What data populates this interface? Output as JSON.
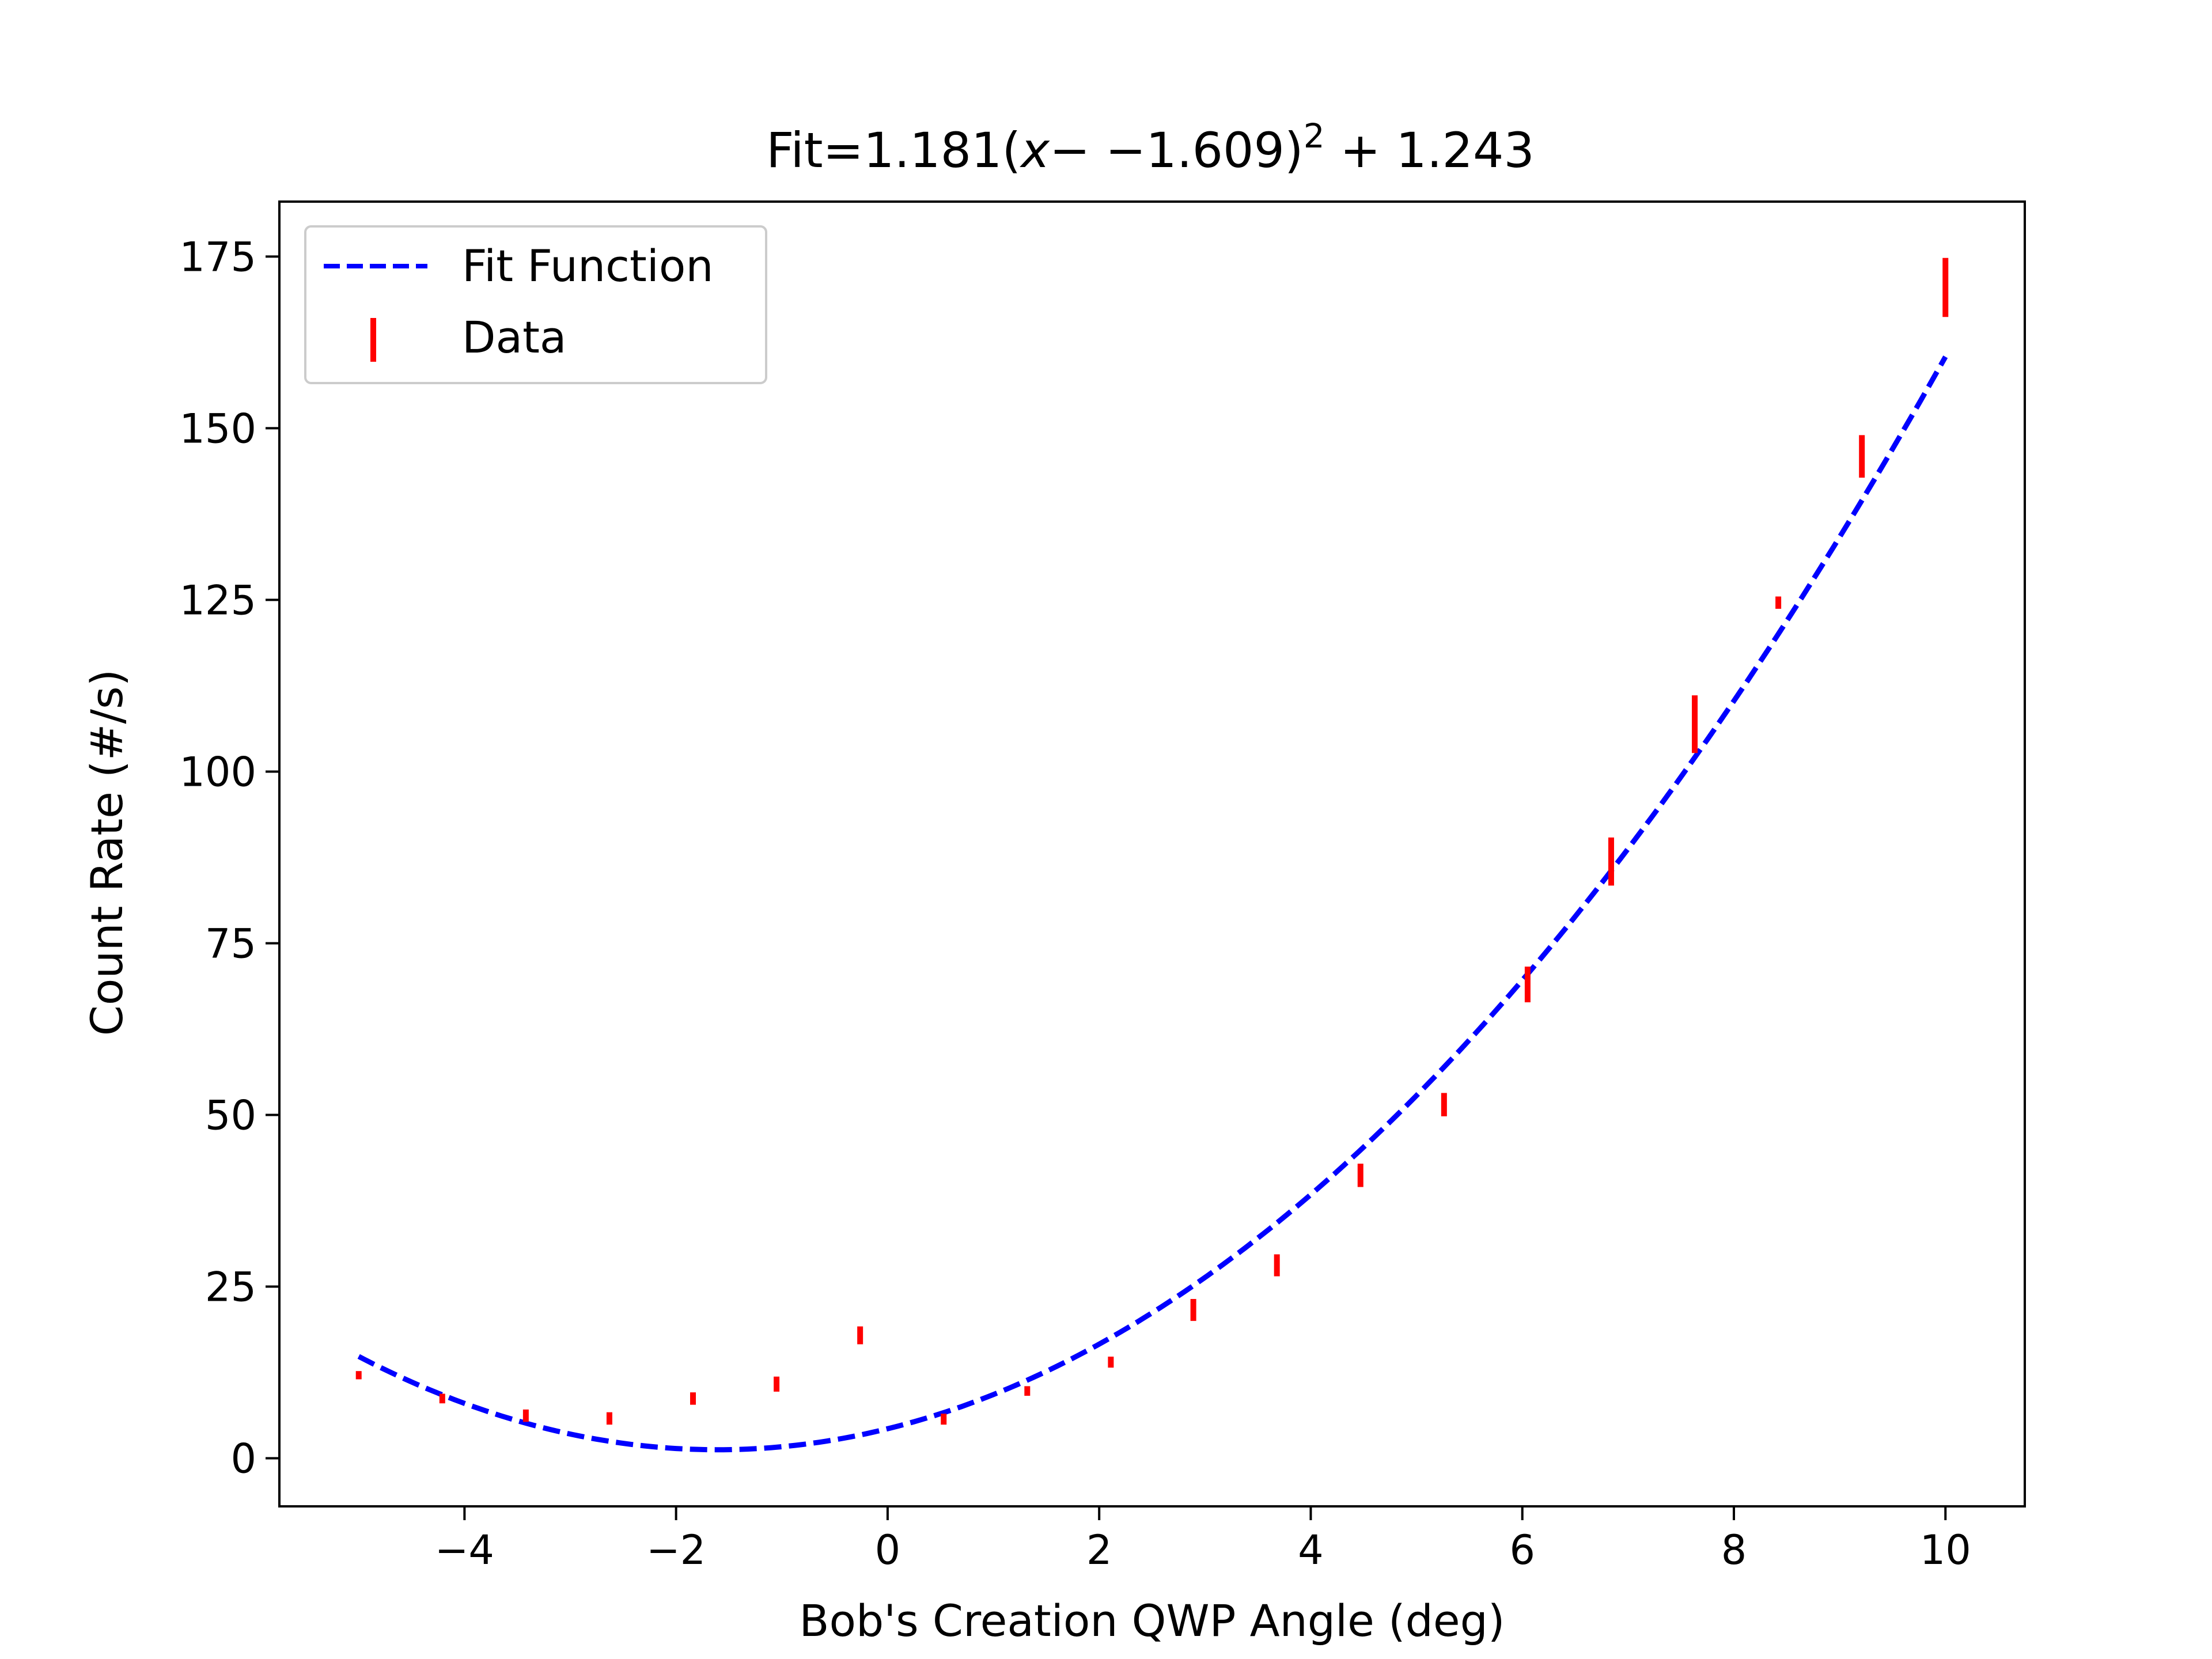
{
  "chart_data": {
    "type": "scatter",
    "title": "Fit=1.181(x− −1.609)² + 1.243",
    "title_parts": {
      "prefix": "Fit=1.181(",
      "var": "x",
      "middle": "− −1.609)",
      "sup": "2",
      "suffix": " + 1.243"
    },
    "xlabel": "Bob's Creation QWP Angle (deg)",
    "ylabel": "Count Rate (#/s)",
    "xlim": [
      -5.75,
      10.75
    ],
    "ylim": [
      -7,
      183
    ],
    "xticks": [
      -4,
      -2,
      0,
      2,
      4,
      6,
      8,
      10
    ],
    "xtick_labels": [
      "−4",
      "−2",
      "0",
      "2",
      "4",
      "6",
      "8",
      "10"
    ],
    "yticks": [
      0,
      25,
      50,
      75,
      100,
      125,
      150,
      175
    ],
    "ytick_labels": [
      "0",
      "25",
      "50",
      "75",
      "100",
      "125",
      "150",
      "175"
    ],
    "grid": false,
    "legend_position": "upper-left",
    "legend": [
      "Fit Function",
      "Data"
    ],
    "fit": {
      "a": 1.181,
      "h": -1.609,
      "k": 1.243,
      "x_range": [
        -5,
        10
      ],
      "color": "#0000ff",
      "style": "dashed"
    },
    "series": [
      {
        "name": "Data",
        "color": "#ff0000",
        "x": [
          -5.0,
          -4.21,
          -3.42,
          -2.63,
          -1.84,
          -1.05,
          -0.26,
          0.53,
          1.32,
          2.11,
          2.89,
          3.68,
          4.47,
          5.26,
          6.05,
          6.84,
          7.63,
          8.42,
          9.21,
          10.0
        ],
        "y": [
          12.1,
          8.7,
          6.2,
          5.8,
          8.7,
          10.8,
          17.9,
          5.7,
          9.8,
          14.0,
          21.6,
          28.1,
          41.2,
          51.5,
          69.0,
          86.9,
          106.9,
          124.6,
          145.9,
          170.5
        ],
        "yerr": [
          0.6,
          0.7,
          0.9,
          0.9,
          0.9,
          1.1,
          1.3,
          0.8,
          0.7,
          0.8,
          1.6,
          1.6,
          1.7,
          1.7,
          2.6,
          3.5,
          4.2,
          0.9,
          3.1,
          4.3
        ]
      }
    ]
  }
}
